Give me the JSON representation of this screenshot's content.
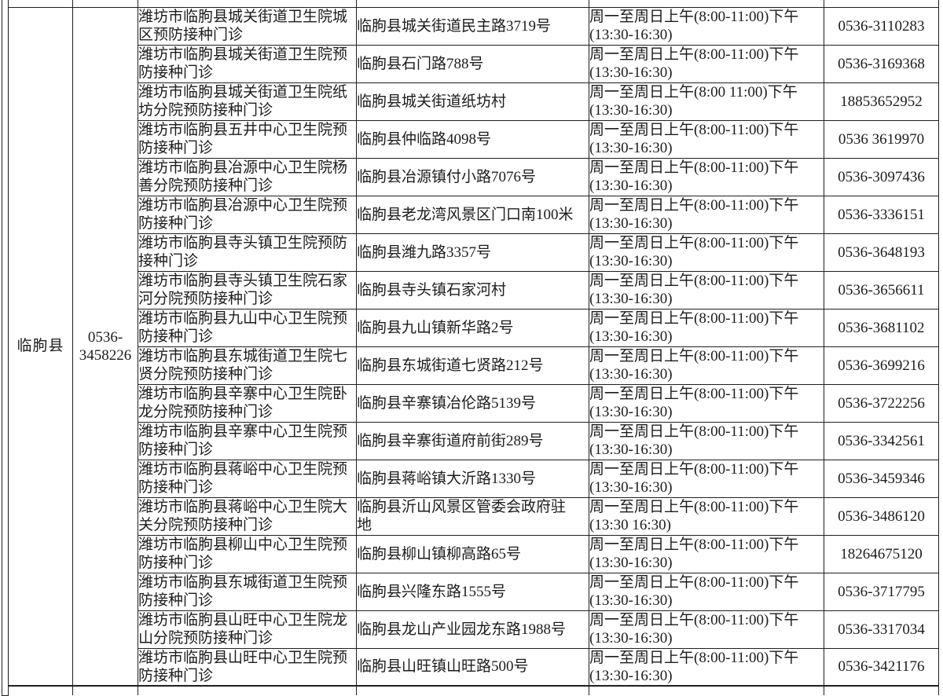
{
  "document": {
    "county": {
      "name": "临朐县",
      "phone_line1": "0536-",
      "phone_line2": "3458226"
    },
    "rows": [
      {
        "name": "潍坊市临朐县城关街道卫生院城区预防接种门诊",
        "address": "临朐县城关街道民主路3719号",
        "address_line2": "",
        "hours_line1": "周一至周日上午(8:00-11:00)下午",
        "hours_line2": "(13:30-16:30)",
        "phone": "0536-3110283"
      },
      {
        "name": "潍坊市临朐县城关街道卫生院预防接种门诊",
        "address": "临朐县石门路788号",
        "address_line2": "",
        "hours_line1": "周一至周日上午(8:00-11:00)下午",
        "hours_line2": "(13:30-16:30)",
        "phone": "0536-3169368"
      },
      {
        "name": "潍坊市临朐县城关街道卫生院纸坊分院预防接种门诊",
        "address": "临朐县城关街道纸坊村",
        "address_line2": "",
        "hours_line1": "周一至周日上午(8:00 11:00)下午",
        "hours_line2": "(13:30-16:30)",
        "phone": "18853652952"
      },
      {
        "name": "潍坊市临朐县五井中心卫生院预防接种门诊",
        "address": "临朐县仲临路4098号",
        "address_line2": "",
        "hours_line1": "周一至周日上午(8:00-11:00)下午",
        "hours_line2": "(13:30-16:30)",
        "phone": "0536 3619970"
      },
      {
        "name": "潍坊市临朐县冶源中心卫生院杨善分院预防接种门诊",
        "address": "临朐县冶源镇付小路7076号",
        "address_line2": "",
        "hours_line1": "周一至周日上午(8:00-11:00)下午",
        "hours_line2": "(13:30-16:30)",
        "phone": "0536-3097436"
      },
      {
        "name": "潍坊市临朐县冶源中心卫生院预防接种门诊",
        "address": "临朐县老龙湾风景区门口南100米",
        "address_line2": "",
        "hours_line1": "周一至周日上午(8:00-11:00)下午",
        "hours_line2": "(13:30-16:30)",
        "phone": "0536-3336151"
      },
      {
        "name": "潍坊市临朐县寺头镇卫生院预防接种门诊",
        "address": "临朐县潍九路3357号",
        "address_line2": "",
        "hours_line1": "周一至周日上午(8:00-11:00)下午",
        "hours_line2": "(13:30-16:30)",
        "phone": "0536-3648193"
      },
      {
        "name": "潍坊市临朐县寺头镇卫生院石家河分院预防接种门诊",
        "address": "临朐县寺头镇石家河村",
        "address_line2": "",
        "hours_line1": "周一至周日上午(8:00-11:00)下午",
        "hours_line2": "(13:30-16:30)",
        "phone": "0536-3656611"
      },
      {
        "name": "潍坊市临朐县九山中心卫生院预防接种门诊",
        "address": "临朐县九山镇新华路2号",
        "address_line2": "",
        "hours_line1": "周一至周日上午(8:00-11:00)下午",
        "hours_line2": "(13:30-16:30)",
        "phone": "0536-3681102"
      },
      {
        "name": "潍坊市临朐县东城街道卫生院七贤分院预防接种门诊",
        "address": "临朐县东城街道七贤路212号",
        "address_line2": "",
        "hours_line1": "周一至周日上午(8:00-11:00)下午",
        "hours_line2": "(13:30-16:30)",
        "phone": "0536-3699216"
      },
      {
        "name": "潍坊市临朐县辛寨中心卫生院卧龙分院预防接种门诊",
        "address": "临朐县辛寨镇冶伦路5139号",
        "address_line2": "",
        "hours_line1": "周一至周日上午(8:00-11:00)下午",
        "hours_line2": "(13:30-16:30)",
        "phone": "0536-3722256"
      },
      {
        "name": "潍坊市临朐县辛寨中心卫生院预防接种门诊",
        "address": "临朐县辛寨街道府前街289号",
        "address_line2": "",
        "hours_line1": "周一至周日上午(8:00-11:00)下午",
        "hours_line2": "(13:30-16:30)",
        "phone": "0536-3342561"
      },
      {
        "name": "潍坊市临朐县蒋峪中心卫生院预防接种门诊",
        "address": "临朐县蒋峪镇大沂路1330号",
        "address_line2": "",
        "hours_line1": "周一至周日上午(8:00-11:00)下午",
        "hours_line2": "(13:30-16:30)",
        "phone": "0536-3459346"
      },
      {
        "name": "潍坊市临朐县蒋峪中心卫生院大关分院预防接种门诊",
        "address": "临朐县沂山风景区管委会政府驻",
        "address_line2": "地",
        "hours_line1": "周一至周日上午(8:00-11:00)下午",
        "hours_line2": "(13:30 16:30)",
        "phone": "0536-3486120"
      },
      {
        "name": "潍坊市临朐县柳山中心卫生院预防接种门诊",
        "address": "临朐县柳山镇柳高路65号",
        "address_line2": "",
        "hours_line1": "周一至周日上午(8:00-11:00)下午",
        "hours_line2": "(13:30-16:30)",
        "phone": "18264675120"
      },
      {
        "name": "潍坊市临朐县东城街道卫生院预防接种门诊",
        "address": "临朐县兴隆东路1555号",
        "address_line2": "",
        "hours_line1": "周一至周日上午(8:00-11:00)下午",
        "hours_line2": "(13:30-16:30)",
        "phone": "0536-3717795"
      },
      {
        "name": "潍坊市临朐县山旺中心卫生院龙山分院预防接种门诊",
        "address": "临朐县龙山产业园龙东路1988号",
        "address_line2": "",
        "hours_line1": "周一至周日上午(8:00-11:00)下午",
        "hours_line2": "(13:30-16:30)",
        "phone": "0536-3317034"
      },
      {
        "name": "潍坊市临朐县山旺中心卫生院预防接种门诊",
        "address": "临朐县山旺镇山旺路500号",
        "address_line2": "",
        "hours_line1": "周一至周日上午(8:00-11:00)下午",
        "hours_line2": "(13:30-16:30)",
        "phone": "0536-3421176"
      }
    ]
  }
}
